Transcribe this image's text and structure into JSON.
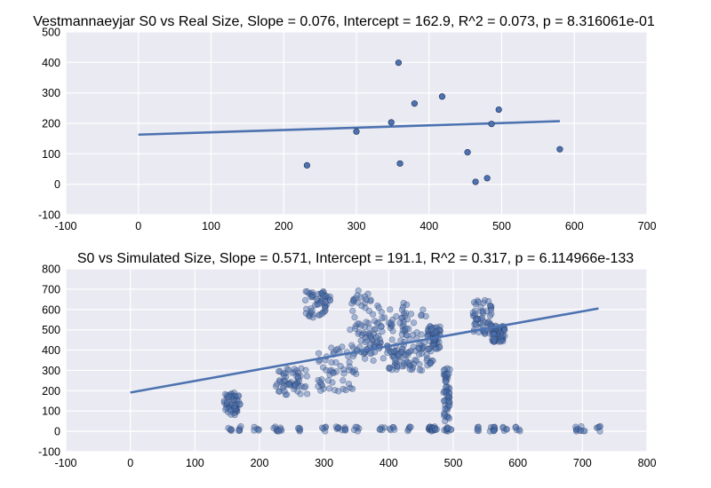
{
  "chart_data": [
    {
      "type": "scatter",
      "title": "Vestmannaeyjar S0 vs Real Size, Slope = 0.076, Intercept = 162.9, R^2 = 0.073, p = 8.316061e-01",
      "xlabel": "",
      "ylabel": "",
      "xlim": [
        -100,
        700
      ],
      "ylim": [
        -100,
        500
      ],
      "x_ticks": [
        -100,
        0,
        100,
        200,
        300,
        400,
        500,
        600,
        700
      ],
      "y_ticks": [
        -100,
        0,
        100,
        200,
        300,
        400,
        500
      ],
      "grid": true,
      "background": "#eaeaf2",
      "point_color": "#4c72b0",
      "points": [
        [
          232,
          62
        ],
        [
          300,
          173
        ],
        [
          348,
          203
        ],
        [
          358,
          399
        ],
        [
          360,
          68
        ],
        [
          380,
          265
        ],
        [
          418,
          288
        ],
        [
          453,
          105
        ],
        [
          464,
          8
        ],
        [
          480,
          20
        ],
        [
          486,
          198
        ],
        [
          496,
          245
        ],
        [
          580,
          115
        ]
      ],
      "fit_line": {
        "slope": 0.076,
        "intercept": 162.9,
        "x": [
          0,
          580
        ]
      }
    },
    {
      "type": "scatter",
      "title": "S0 vs Simulated Size, Slope = 0.571, Intercept = 191.1, R^2 = 0.317, p = 6.114966e-133",
      "xlabel": "",
      "ylabel": "",
      "xlim": [
        -100,
        800
      ],
      "ylim": [
        -100,
        800
      ],
      "x_ticks": [
        -100,
        0,
        100,
        200,
        300,
        400,
        500,
        600,
        700,
        800
      ],
      "y_ticks": [
        -100,
        0,
        100,
        200,
        300,
        400,
        500,
        600,
        700,
        800
      ],
      "grid": true,
      "background": "#eaeaf2",
      "point_color": "#4c72b0",
      "clusters": [
        {
          "x": [
            145,
            170
          ],
          "y": [
            80,
            190
          ]
        },
        {
          "x": [
            225,
            275
          ],
          "y": [
            180,
            310
          ]
        },
        {
          "x": [
            270,
            310
          ],
          "y": [
            560,
            690
          ]
        },
        {
          "x": [
            290,
            350
          ],
          "y": [
            190,
            420
          ]
        },
        {
          "x": [
            340,
            380
          ],
          "y": [
            380,
            700
          ]
        },
        {
          "x": [
            350,
            430
          ],
          "y": [
            320,
            560
          ]
        },
        {
          "x": [
            380,
            460
          ],
          "y": [
            380,
            640
          ]
        },
        {
          "x": [
            400,
            470
          ],
          "y": [
            300,
            420
          ]
        },
        {
          "x": [
            460,
            480
          ],
          "y": [
            400,
            520
          ]
        },
        {
          "x": [
            485,
            495
          ],
          "y": [
            50,
            320
          ]
        },
        {
          "x": [
            530,
            560
          ],
          "y": [
            480,
            650
          ]
        },
        {
          "x": [
            560,
            580
          ],
          "y": [
            440,
            520
          ]
        }
      ],
      "near_zero_x": [
        155,
        170,
        195,
        225,
        230,
        260,
        300,
        320,
        330,
        350,
        390,
        405,
        430,
        462,
        465,
        470,
        472,
        488,
        493,
        540,
        560,
        565,
        580,
        600,
        690,
        700,
        725
      ],
      "fit_line": {
        "slope": 0.571,
        "intercept": 191.1,
        "x": [
          0,
          725
        ]
      }
    }
  ]
}
